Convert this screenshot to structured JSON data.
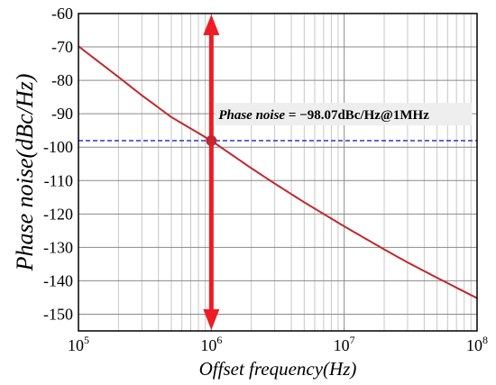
{
  "chart_data": {
    "type": "line",
    "title": "",
    "xlabel": "Offset frequency(Hz)",
    "ylabel": "Phase noise(dBc/Hz)",
    "xscale": "log",
    "xlim": [
      100000,
      100000000
    ],
    "ylim": [
      -155,
      -60
    ],
    "grid": true,
    "x_ticks": [
      {
        "base": "10",
        "exp": "5"
      },
      {
        "base": "10",
        "exp": "6"
      },
      {
        "base": "10",
        "exp": "7"
      },
      {
        "base": "10",
        "exp": "8"
      }
    ],
    "y_ticks": [
      -60,
      -70,
      -80,
      -90,
      -100,
      -110,
      -120,
      -130,
      -140,
      -150
    ],
    "series": [
      {
        "color": "#c0282d",
        "x": [
          100000,
          200000,
          300000,
          500000,
          1000000,
          2000000,
          3000000,
          5000000,
          10000000,
          20000000,
          30000000,
          50000000,
          100000000
        ],
        "y": [
          -69.8,
          -79.0,
          -84.5,
          -91.0,
          -98.07,
          -106.3,
          -110.9,
          -116.5,
          -123.7,
          -130.6,
          -134.5,
          -139.1,
          -145.2
        ]
      }
    ],
    "annotations": {
      "label_prefix": "Phase noise",
      "label_value": " = −98.07dBc/Hz@1MHz",
      "marker": {
        "x": 1000000,
        "y": -98.07
      },
      "hline_y": -98.07,
      "arrow_x": 1000000
    },
    "colors": {
      "curve": "#c0282d",
      "arrow": "#ee1c24",
      "hline": "#2a36c8",
      "marker": "#c0282d"
    }
  }
}
